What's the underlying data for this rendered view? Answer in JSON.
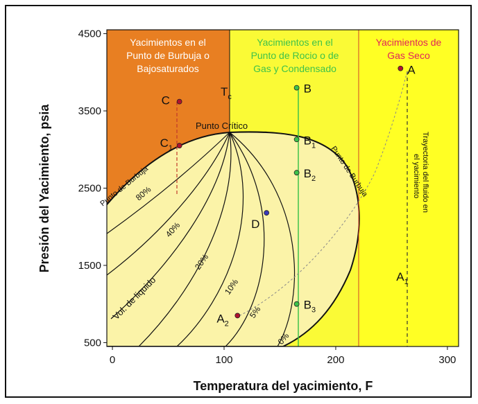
{
  "x_axis": {
    "title": "Temperatura del yacimiento, F",
    "ticks": [
      {
        "value": 0,
        "label": "0"
      },
      {
        "value": 100,
        "label": "100"
      },
      {
        "value": 200,
        "label": "200"
      },
      {
        "value": 300,
        "label": "300"
      }
    ],
    "range": [
      -5,
      310
    ]
  },
  "y_axis": {
    "title": "Presión del Yacimiento, psia",
    "ticks": [
      {
        "value": 500,
        "label": "500"
      },
      {
        "value": 1500,
        "label": "1500"
      },
      {
        "value": 2500,
        "label": "2500"
      },
      {
        "value": 3500,
        "label": "3500"
      },
      {
        "value": 4500,
        "label": "4500"
      }
    ],
    "range": [
      450,
      4550
    ]
  },
  "regions": {
    "undersaturated": {
      "line1": "Yacimientos en el",
      "line2": "Punto de Burbuja o",
      "line3": "Bajosaturados",
      "color": "#e87f22",
      "text_color": "#ffffff"
    },
    "condensate": {
      "line1": "Yacimientos  en el",
      "line2": "Punto de Rocio o de",
      "line3": "Gas y Condensado",
      "color": "#fafa36",
      "text_color": "#3ec24a"
    },
    "dry_gas": {
      "line1": "Yacimientos  de",
      "line2": "Gas Seco",
      "color": "#ffff24",
      "text_color": "#e0245a"
    }
  },
  "envelope_fill": "#fbf3a8",
  "labels": {
    "tc": "T",
    "tc_sub": "c",
    "critical_point": "Punto Crítico",
    "bubble_left": "Punto de Burbuja",
    "bubble_right": "Punto de Burbuja",
    "vol_liquid": "Vol. de liquido",
    "pct_80": "80%",
    "pct_40": "40%",
    "pct_20": "20%",
    "pct_10": "10%",
    "pct_5": "5%",
    "pct_0": "0%",
    "trajectory_line1": "Trayectoria del fluido en",
    "trajectory_line2": "el yacimiento"
  },
  "points": {
    "A": {
      "label": "A",
      "sub": "",
      "x": 258,
      "y": 4050
    },
    "A1": {
      "label": "A",
      "sub": "1",
      "x": 258,
      "y": 1250
    },
    "B": {
      "label": "B",
      "sub": "",
      "x": 165,
      "y": 3800
    },
    "B1": {
      "label": "B",
      "sub": "1",
      "x": 165,
      "y": 3130
    },
    "B2": {
      "label": "B",
      "sub": "2",
      "x": 165,
      "y": 2700
    },
    "B3": {
      "label": "B",
      "sub": "3",
      "x": 165,
      "y": 1000
    },
    "C": {
      "label": "C",
      "sub": "",
      "x": 60,
      "y": 3620
    },
    "C1": {
      "label": "C",
      "sub": "1",
      "x": 60,
      "y": 3050
    },
    "D": {
      "label": "D",
      "sub": "",
      "x": 138,
      "y": 2180
    },
    "A2": {
      "label": "A",
      "sub": "2",
      "x": 112,
      "y": 850
    }
  }
}
